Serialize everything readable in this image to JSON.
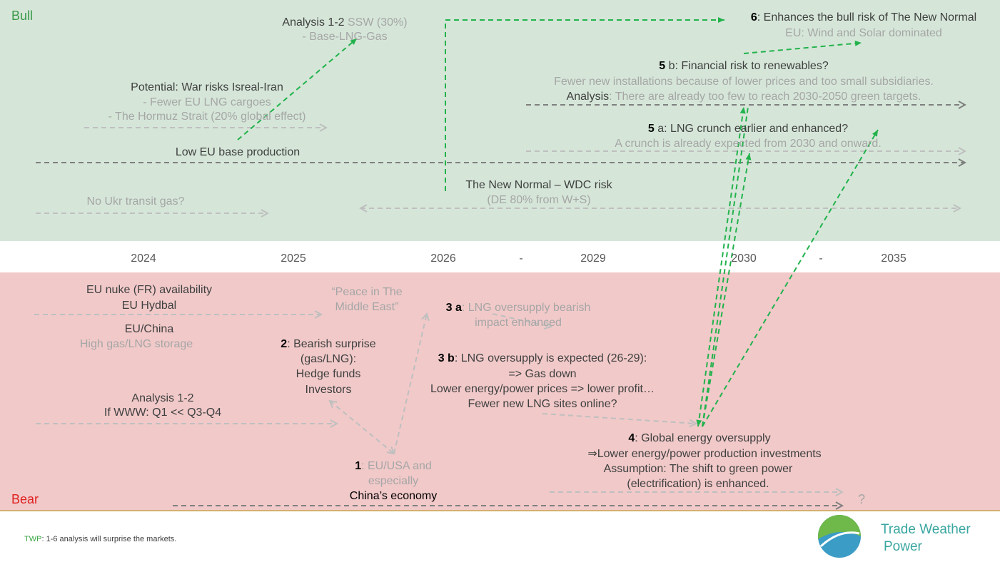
{
  "zones": {
    "bull": "Bull",
    "bear": "Bear"
  },
  "bull": {
    "ssw": {
      "lead": "Analysis 1-2",
      "rest": " SSW (30%)",
      "line2": "- Base-LNG-Gas"
    },
    "war": {
      "line1": "Potential: War risks Isreal-Iran",
      "line2": "- Fewer EU LNG cargoes",
      "line3": "- The Hormuz Strait (20% global effect)"
    },
    "low_base": "Low EU base production",
    "ukr": "No Ukr transit gas?",
    "new_normal": {
      "line1": "The New Normal – WDC risk",
      "line2": "(DE 80% from W+S)"
    },
    "six": {
      "num": "6",
      "rest": ": Enhances the bull risk of The New Normal",
      "line2": "EU: Wind and Solar dominated"
    },
    "five_b": {
      "num": "5",
      "rest": " b: Financial risk to renewables?",
      "line2": "Fewer new installations because of lower prices and too small subsidiaries.",
      "lead3": "Analysis",
      "rest3": ": There are already too few to reach 2030-2050 green targets."
    },
    "five_a": {
      "num": "5",
      "rest": " a: LNG crunch earlier and enhanced?",
      "line2": "A crunch is already expected from 2030 and onward."
    }
  },
  "timeline": [
    "2024",
    "2025",
    "2026",
    "-",
    "2029",
    "2030",
    "-",
    "2035"
  ],
  "bear": {
    "supply": {
      "line1": "EU nuke (FR) availability",
      "line2": "EU Hydbal",
      "line3": "EU/China",
      "line4": "High gas/LNG storage"
    },
    "peace": {
      "line1": "“Peace in The",
      "line2": "Middle East”"
    },
    "three_a": {
      "num": "3 a",
      "rest": ": LNG oversupply bearish",
      "line2": "impact enhanced"
    },
    "two": {
      "num": "2",
      "rest": ": Bearish surprise",
      "line2": "(gas/LNG):",
      "line3": "Hedge funds",
      "line4": "Investors"
    },
    "three_b": {
      "num": "3 b",
      "rest": ": LNG oversupply is expected (26-29):",
      "line2": "=> Gas down",
      "line3": "Lower energy/power prices => lower profit…",
      "line4": "Fewer new LNG sites online?"
    },
    "analysis": {
      "line1": "Analysis 1-2",
      "line2": "If WWW: Q1 << Q3-Q4"
    },
    "one": {
      "num": "1",
      "rest": ": EU/USA and",
      "line2": "especially",
      "line3": "China’s economy"
    },
    "four": {
      "num": "4",
      "rest": ": Global energy oversupply",
      "line2": "⇒Lower energy/power production investments",
      "lead3": "Assumption",
      "rest3": ": The shift to green power",
      "line4": "(electrification) is enhanced."
    },
    "question": "?"
  },
  "footer": {
    "lead": "TWP",
    "rest": ": 1-6 analysis will surprise the markets.",
    "logo_line1": "Trade Weather",
    "logo_line2": "Power"
  }
}
